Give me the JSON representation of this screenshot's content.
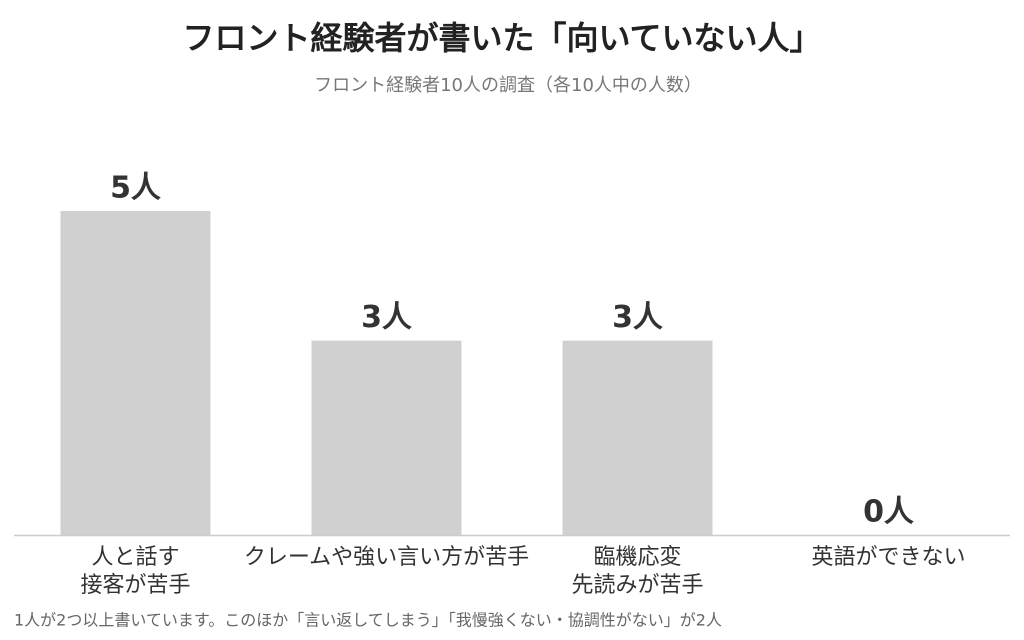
{
  "chart_data": {
    "type": "bar",
    "title": "フロント経験者が書いた「向いていない人」",
    "subtitle": "フロント経験者10人の調査（各10人中の人数）",
    "categories": [
      [
        "人と話す",
        "接客が苦手"
      ],
      [
        "クレームや強い言い方が苦手"
      ],
      [
        "臨機応変",
        "先読みが苦手"
      ],
      [
        "英語ができない"
      ]
    ],
    "values": [
      5,
      3,
      3,
      0
    ],
    "value_labels": [
      "5人",
      "3人",
      "3人",
      "0人"
    ],
    "color": "#d0d0d0",
    "annotation": "1人が2つ以上書いています。このほか「言い返してしまう」「我慢強くない・協調性がない」が2人"
  }
}
